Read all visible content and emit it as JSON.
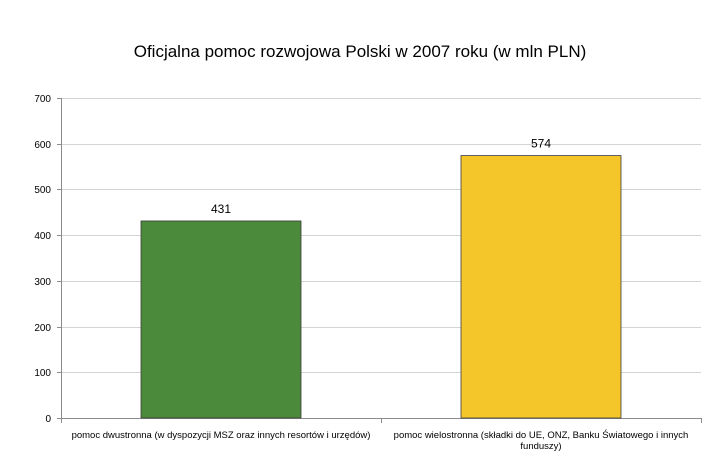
{
  "chart_data": {
    "type": "bar",
    "title": "Oficjalna pomoc rozwojowa Polski w 2007 roku (w mln PLN)",
    "xlabel": "",
    "ylabel": "",
    "categories": [
      "pomoc dwustronna (w dyspozycji MSZ oraz innych resortów i urzędów)",
      "pomoc wielostronna (składki do UE, ONZ, Banku Światowego i innych funduszy)"
    ],
    "values": [
      431,
      574
    ],
    "data_labels": [
      "431",
      "574"
    ],
    "bar_colors": [
      "#4a8a3a",
      "#f5c62a"
    ],
    "ylim": [
      0,
      700
    ],
    "yticks": [
      0,
      100,
      200,
      300,
      400,
      500,
      600,
      700
    ],
    "grid": true,
    "legend": false
  },
  "colors": {
    "gridline": "#d4d4d4",
    "axis": "#8c8c8c",
    "bar_border": "#3a3a3a"
  }
}
